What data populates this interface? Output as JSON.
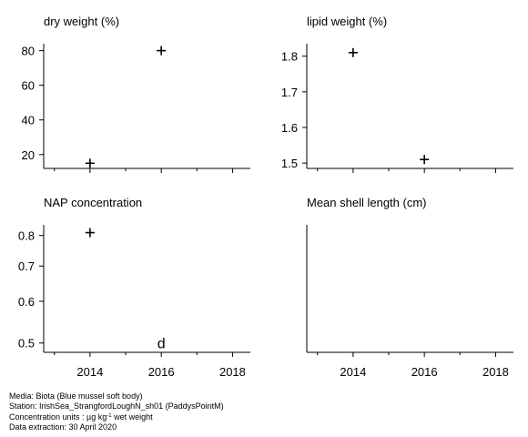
{
  "chart_data": [
    {
      "type": "scatter",
      "title": "dry weight (%)",
      "xlim": [
        2012.7,
        2018.5
      ],
      "xticks": [
        2014,
        2016,
        2018
      ],
      "xtick_labels_shown": false,
      "ylim": [
        12,
        84
      ],
      "yticks": [
        20,
        40,
        60,
        80
      ],
      "ytick_labels": [
        "20",
        "40",
        "60",
        "80"
      ],
      "points": [
        {
          "x": 2014,
          "y": 15,
          "marker": "+"
        },
        {
          "x": 2016,
          "y": 80,
          "marker": "+"
        }
      ]
    },
    {
      "type": "scatter",
      "title": "lipid weight (%)",
      "xlim": [
        2012.7,
        2018.5
      ],
      "xticks": [
        2014,
        2016,
        2018
      ],
      "xtick_labels_shown": false,
      "ylim": [
        1.485,
        1.835
      ],
      "yticks": [
        1.5,
        1.6,
        1.7,
        1.8
      ],
      "ytick_labels": [
        "1.5",
        "1.6",
        "1.7",
        "1.8"
      ],
      "points": [
        {
          "x": 2014,
          "y": 1.81,
          "marker": "+"
        },
        {
          "x": 2016,
          "y": 1.51,
          "marker": "+"
        }
      ]
    },
    {
      "type": "scatter",
      "title": "NAP concentration",
      "xlim": [
        2012.7,
        2018.5
      ],
      "xticks": [
        2014,
        2016,
        2018
      ],
      "xtick_labels": [
        "2014",
        "2016",
        "2018"
      ],
      "ylim": [
        0.48,
        0.838
      ],
      "log_scale": true,
      "yticks": [
        0.5,
        0.6,
        0.7,
        0.8
      ],
      "ytick_labels": [
        "0.5",
        "0.6",
        "0.7",
        "0.8"
      ],
      "points": [
        {
          "x": 2014,
          "y": 0.81,
          "marker": "+"
        },
        {
          "x": 2016,
          "y": 0.5,
          "marker": "d"
        }
      ]
    },
    {
      "type": "scatter",
      "title": "Mean shell length (cm)",
      "xlim": [
        2012.7,
        2018.5
      ],
      "xticks": [
        2014,
        2016,
        2018
      ],
      "xtick_labels": [
        "2014",
        "2016",
        "2018"
      ],
      "points": []
    }
  ],
  "footer": {
    "media": "Media: Biota (Blue mussel soft body)",
    "station": "Station: IrishSea_StrangfordLoughN_sh01 (PaddysPointM)",
    "units_prefix": "Concentration units : µg kg",
    "units_sup": "-1",
    "units_suffix": " wet weight",
    "extraction": "Data extraction: 30 April 2020"
  }
}
